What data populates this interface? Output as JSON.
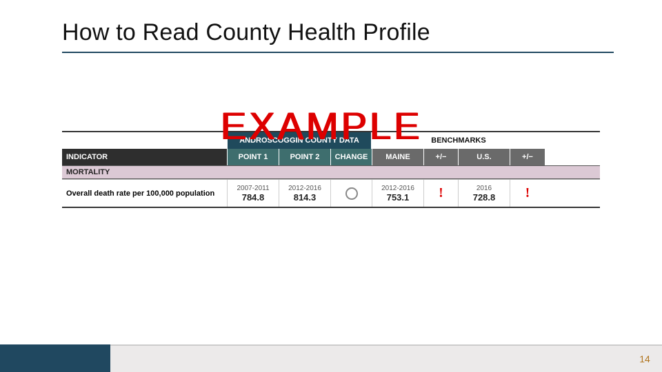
{
  "slide": {
    "title": "How to Read County Health Profile",
    "watermark": "EXAMPLE",
    "page_number": "14"
  },
  "colors": {
    "title_underline": "#204860",
    "watermark": "#d00000",
    "header_dark": "#2e2e2e",
    "header_teal": "#3e6e6e",
    "header_gray": "#6a6a6a",
    "header_county_bg": "#1f4a5c",
    "section_bg": "#dcc9d5",
    "footer_left": "#204860",
    "footer_mid": "#eceaea",
    "page_number_color": "#b0741e",
    "alert_red": "#d00000",
    "neutral_circle": "#888888"
  },
  "table": {
    "top_headers": {
      "county_data": "ANDROSCOGGIN COUNTY DATA",
      "benchmarks": "BENCHMARKS"
    },
    "columns": {
      "indicator": "INDICATOR",
      "point1": "POINT 1",
      "point2": "POINT 2",
      "change": "CHANGE",
      "maine": "MAINE",
      "pm1": "+/−",
      "us": "U.S.",
      "pm2": "+/−"
    },
    "section": "MORTALITY",
    "row": {
      "indicator": "Overall death rate per 100,000 population",
      "point1": {
        "years": "2007-2011",
        "value": "784.8"
      },
      "point2": {
        "years": "2012-2016",
        "value": "814.3"
      },
      "change_symbol": "neutral-circle",
      "maine": {
        "years": "2012-2016",
        "value": "753.1"
      },
      "pm1_symbol": "alert",
      "us": {
        "years": "2016",
        "value": "728.8"
      },
      "pm2_symbol": "alert"
    }
  }
}
